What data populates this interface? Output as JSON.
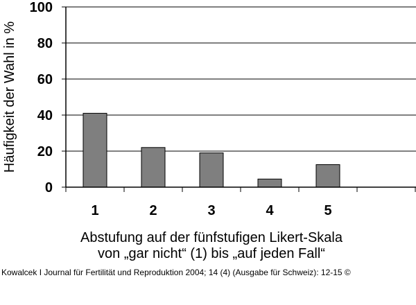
{
  "chart_data": {
    "type": "bar",
    "categories": [
      "1",
      "2",
      "3",
      "4",
      "5",
      ""
    ],
    "values": [
      41,
      22,
      19,
      4.5,
      12.5,
      null
    ],
    "ylabel": "Häufigkeit der Wahl in %",
    "xlabel_line1": "Abstufung auf der fünfstufigen Likert-Skala",
    "xlabel_line2": "von „gar nicht“ (1) bis „auf jeden Fall“",
    "yticks": [
      "0",
      "20",
      "40",
      "60",
      "80",
      "100"
    ],
    "ylim": [
      0,
      100
    ],
    "grid": true,
    "colors": {
      "bar": "#7f7f7f",
      "bar_edge": "#000000"
    }
  },
  "credit": "Kowalcek I Journal für Fertilität und Reproduktion 2004; 14 (4) (Ausgabe für Schweiz): 12-15 ©"
}
